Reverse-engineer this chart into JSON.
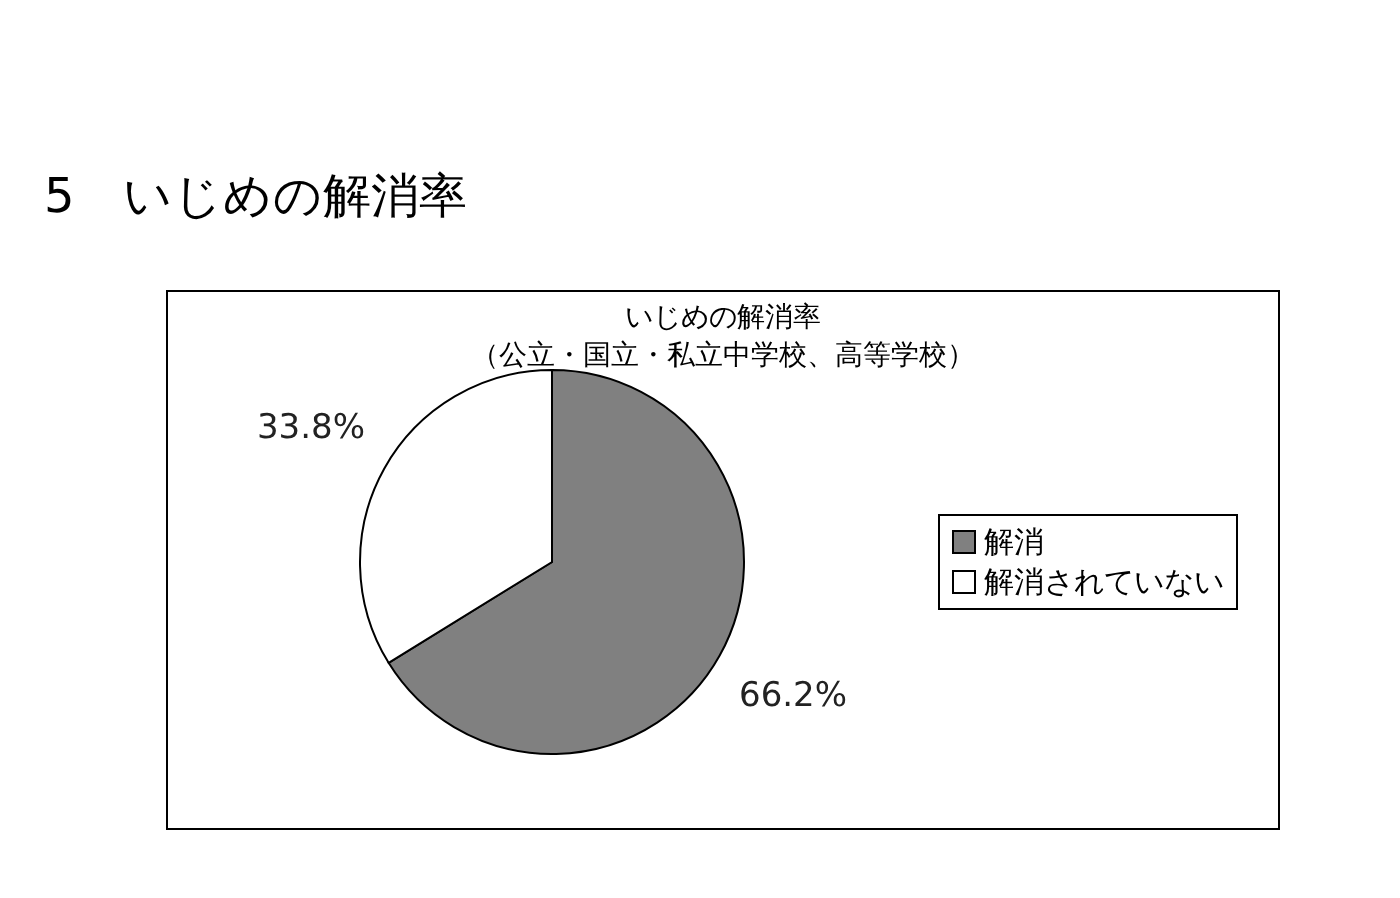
{
  "chart_data": {
    "type": "pie",
    "title": "5　いじめの解消率",
    "subtitle": "いじめの解消率",
    "annotations": [
      "（公立・国立・私立中学校、高等学校）"
    ],
    "categories": [
      "解消",
      "解消されていない"
    ],
    "values": [
      66.2,
      33.8
    ],
    "value_labels": [
      "66.2%",
      "33.8%"
    ],
    "colors": [
      "#808080",
      "#ffffff"
    ],
    "legend": "right"
  }
}
